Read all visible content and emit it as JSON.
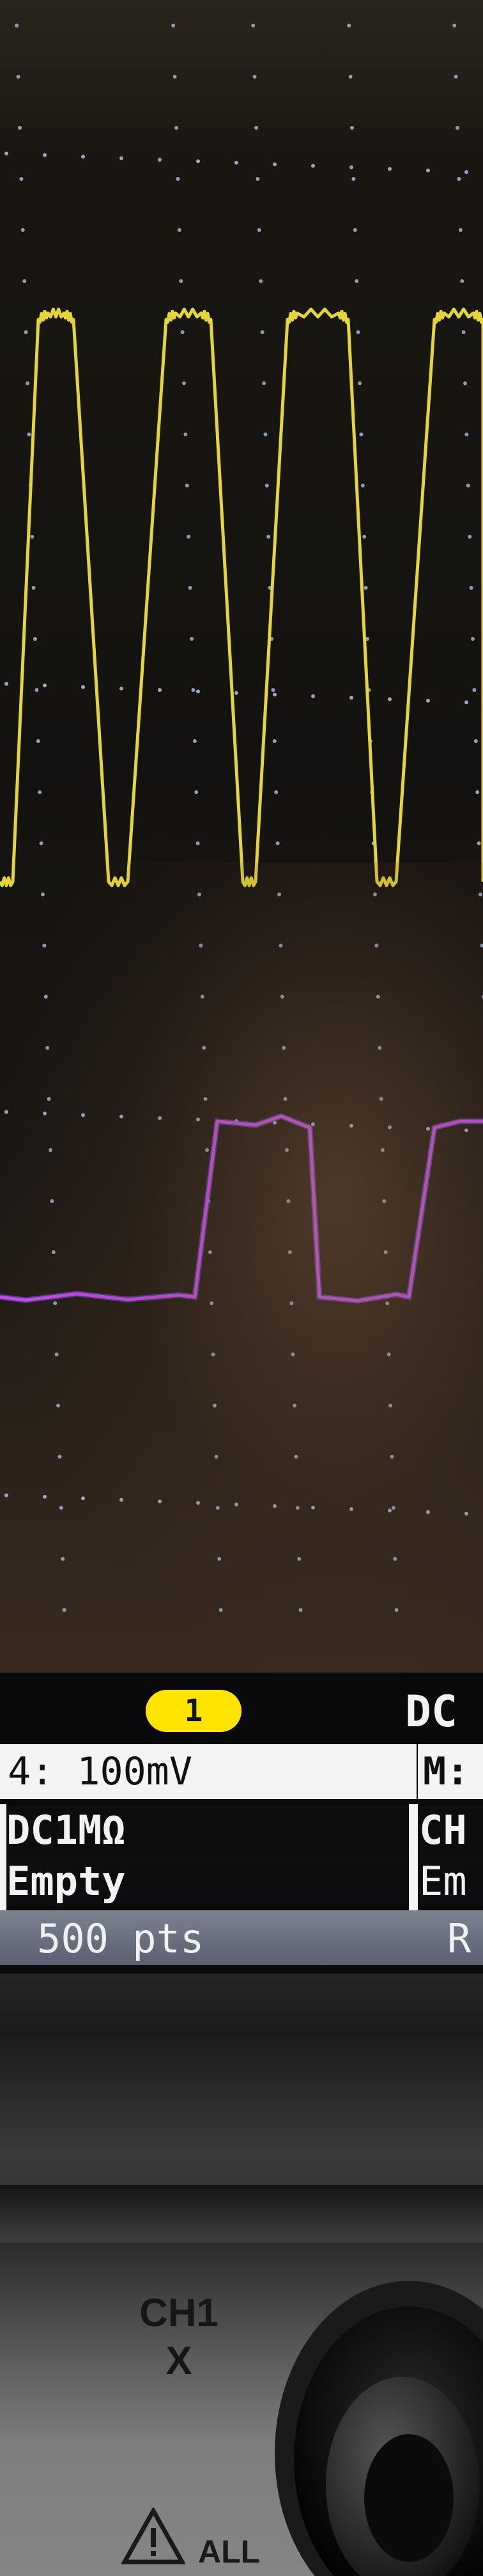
{
  "scope": {
    "channel_badge": "1",
    "coupling_label": "DC",
    "scale_row": "4: 100mV",
    "menu_row": "M:",
    "input_mode": "DC1MΩ",
    "input_mode_right": "CH",
    "storage": "Empty",
    "storage_right": "Em",
    "points": "500 pts",
    "points_right": "R"
  },
  "front_panel": {
    "knob_label_line1": "CH1",
    "knob_label_line2": "X",
    "warning_text": "ALL"
  },
  "colors": {
    "trace_channel_1": "#e4d53a",
    "trace_channel_2": "#c64ce0",
    "trace_channel_2_edge": "#6a55f0",
    "badge": "#ffe400"
  }
}
